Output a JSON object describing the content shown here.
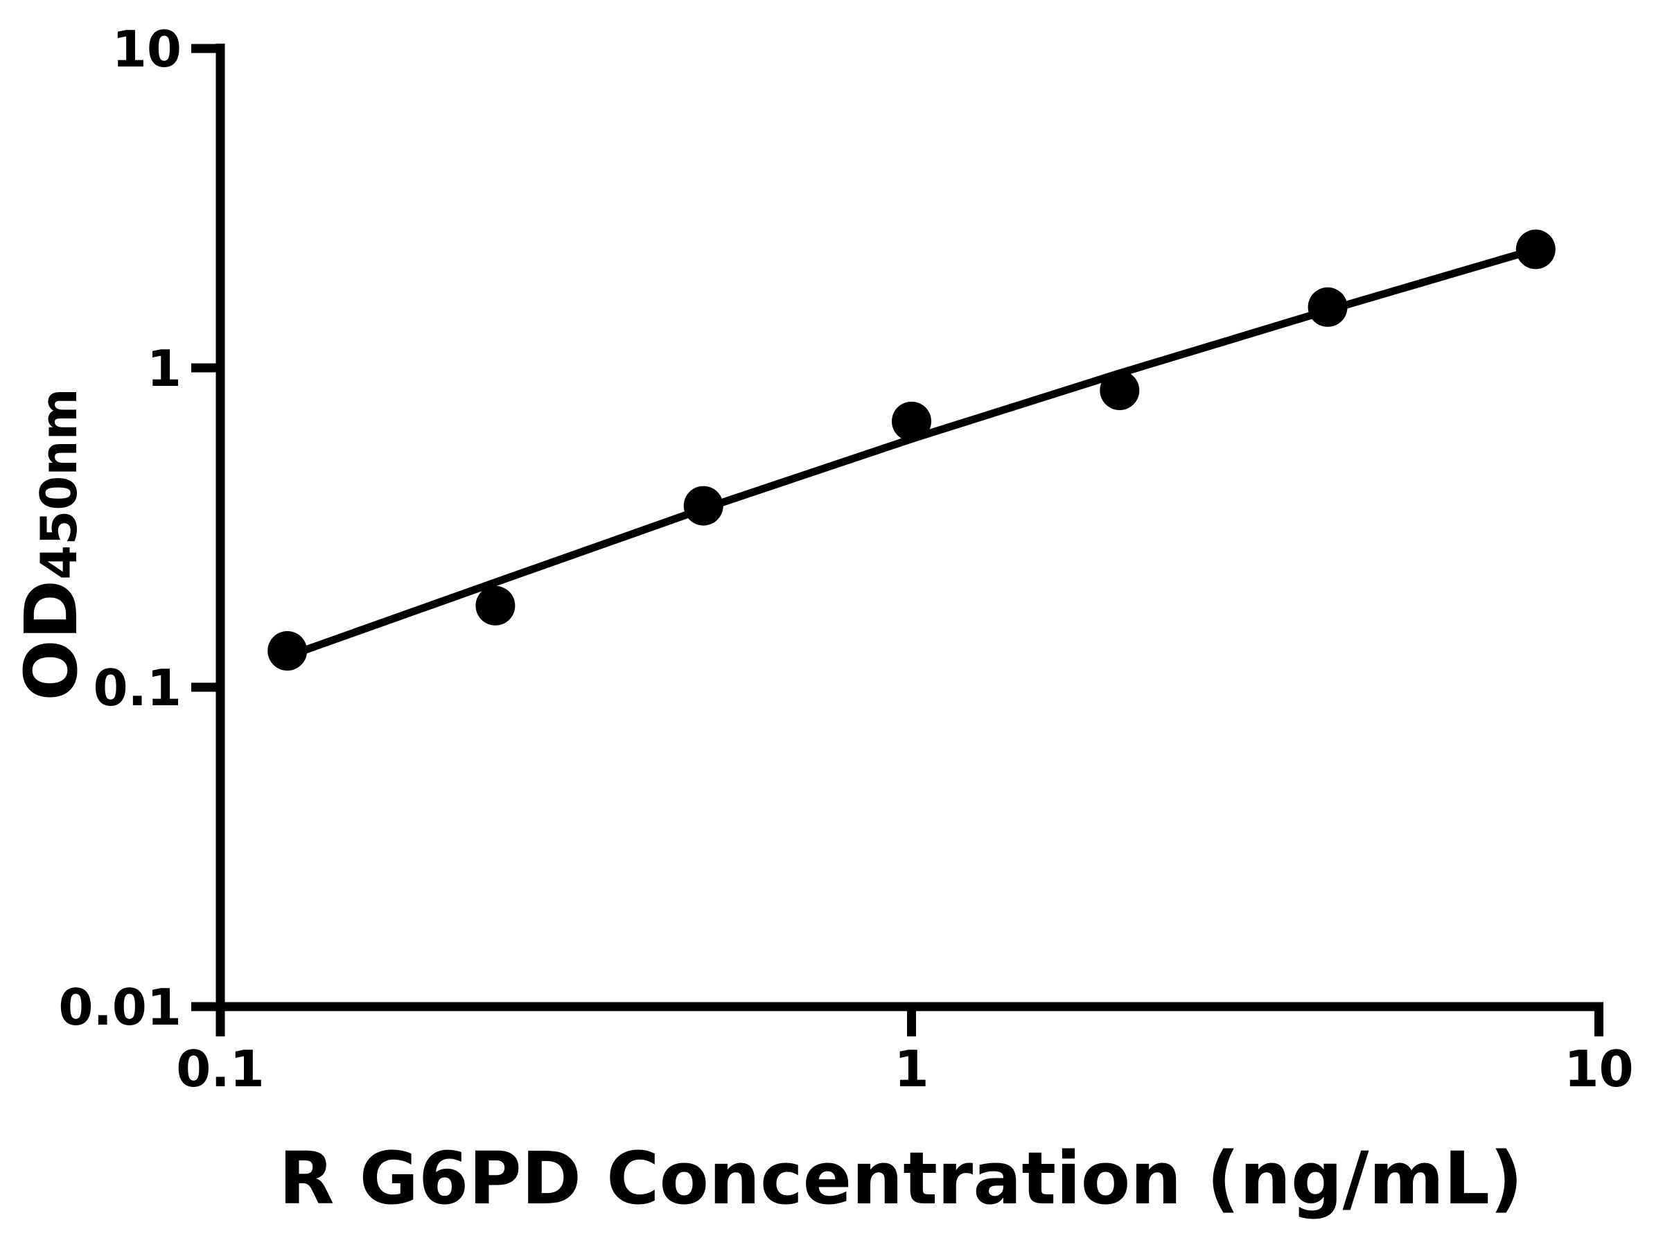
{
  "figure": {
    "background_color": "#ffffff",
    "ink_color": "#000000"
  },
  "chart_data": {
    "type": "scatter",
    "title": "",
    "x_axis": {
      "title": "R G6PD Concentration (ng/mL)",
      "scale": "log",
      "min": 0.1,
      "max": 10,
      "tick_values": [
        0.1,
        1,
        10
      ],
      "tick_labels": [
        "0.1",
        "1",
        "10"
      ]
    },
    "y_axis": {
      "title_main": "OD",
      "title_sub": "450nm",
      "scale": "log",
      "min": 0.01,
      "max": 10,
      "tick_values": [
        10,
        1,
        0.1,
        0.01
      ],
      "tick_labels": [
        "10",
        "1",
        "0.1",
        "0.01"
      ]
    },
    "grid": "off",
    "legend": "none",
    "series": [
      {
        "name": "R G6PD standard points",
        "marker": "filled-circle",
        "color": "#000000",
        "x": [
          0.125,
          0.25,
          0.5,
          1,
          2,
          4,
          8
        ],
        "y": [
          0.13,
          0.18,
          0.37,
          0.68,
          0.85,
          1.55,
          2.35
        ]
      }
    ],
    "fit_curve": {
      "name": "standard curve fit line",
      "color": "#000000",
      "x": [
        0.125,
        0.25,
        0.5,
        1,
        2,
        4,
        8
      ],
      "y": [
        0.125,
        0.213,
        0.362,
        0.599,
        0.962,
        1.514,
        2.35
      ]
    }
  }
}
